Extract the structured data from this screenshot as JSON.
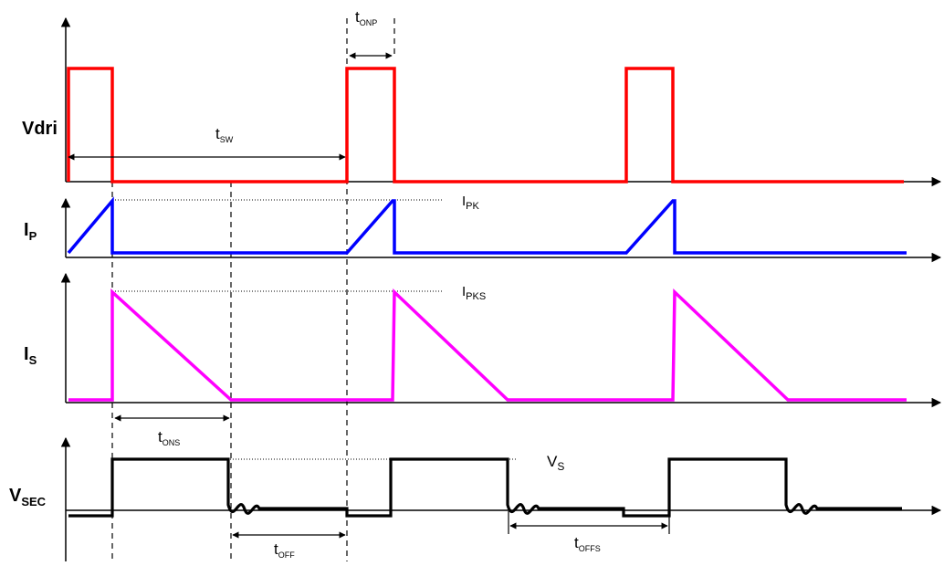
{
  "signals": {
    "vdri": {
      "main": "V",
      "sub": "dri",
      "color": "#ff0000"
    },
    "ip": {
      "main": "I",
      "sub": "P",
      "color": "#0000ff"
    },
    "is": {
      "main": "I",
      "sub": "S",
      "color": "#ff00ff"
    },
    "vsec": {
      "main": "V",
      "sub": "SEC",
      "color": "#000000"
    }
  },
  "annotations": {
    "t_onp": {
      "main": "t",
      "sub": "ONP"
    },
    "t_sw": {
      "main": "t",
      "sub": "SW"
    },
    "i_pk": {
      "main": "I",
      "sub": "PK"
    },
    "i_pks": {
      "main": "I",
      "sub": "PKS"
    },
    "t_ons": {
      "main": "t",
      "sub": "ONS"
    },
    "v_s": {
      "main": "V",
      "sub": "S"
    },
    "t_off": {
      "main": "t",
      "sub": "OFF"
    },
    "t_offs": {
      "main": "t",
      "sub": "OFFS"
    }
  }
}
